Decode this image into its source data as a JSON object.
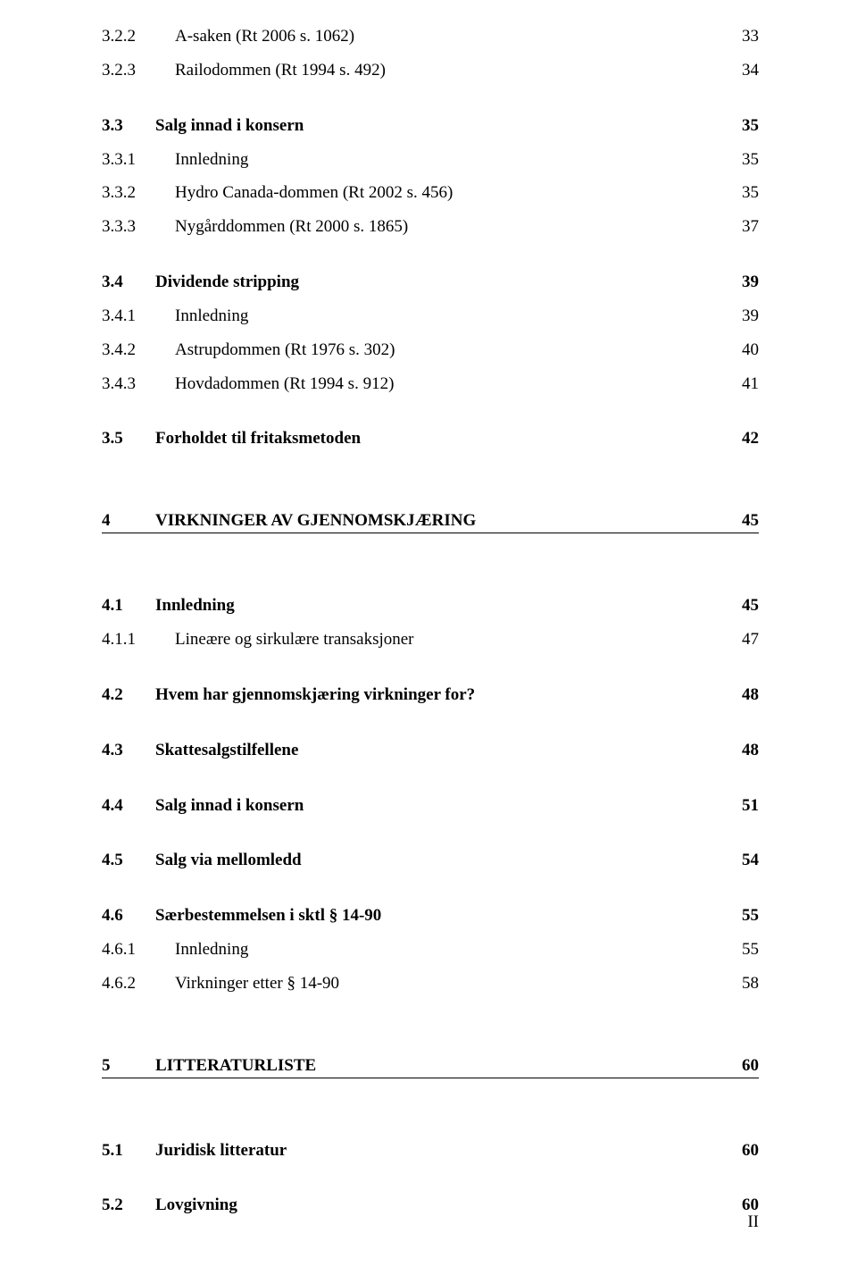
{
  "entries": [
    {
      "num": "3.2.2",
      "title": "A-saken (Rt 2006 s. 1062)",
      "page": "33",
      "bold": false,
      "underline": false,
      "gap_after": 16
    },
    {
      "num": "3.2.3",
      "title": "Railodommen (Rt 1994 s. 492)",
      "page": "34",
      "bold": false,
      "underline": false,
      "gap_after": 40
    },
    {
      "num": "3.3",
      "title": "Salg innad i konsern",
      "page": "35",
      "bold": true,
      "underline": false,
      "gap_after": 16
    },
    {
      "num": "3.3.1",
      "title": "Innledning",
      "page": "35",
      "bold": false,
      "underline": false,
      "gap_after": 16
    },
    {
      "num": "3.3.2",
      "title": "Hydro Canada-dommen (Rt 2002 s. 456)",
      "page": "35",
      "bold": false,
      "underline": false,
      "gap_after": 16
    },
    {
      "num": "3.3.3",
      "title": "Nygårddommen (Rt 2000 s. 1865)",
      "page": "37",
      "bold": false,
      "underline": false,
      "gap_after": 40
    },
    {
      "num": "3.4",
      "title": "Dividende stripping",
      "page": "39",
      "bold": true,
      "underline": false,
      "gap_after": 16
    },
    {
      "num": "3.4.1",
      "title": "Innledning",
      "page": "39",
      "bold": false,
      "underline": false,
      "gap_after": 16
    },
    {
      "num": "3.4.2",
      "title": "Astrupdommen (Rt 1976 s. 302)",
      "page": "40",
      "bold": false,
      "underline": false,
      "gap_after": 16
    },
    {
      "num": "3.4.3",
      "title": "Hovdadommen (Rt 1994 s. 912)",
      "page": "41",
      "bold": false,
      "underline": false,
      "gap_after": 40
    },
    {
      "num": "3.5",
      "title": "Forholdet til fritaksmetoden",
      "page": "42",
      "bold": true,
      "underline": false,
      "gap_after": 70
    },
    {
      "num": "4",
      "title": "VIRKNINGER AV GJENNOMSKJÆRING",
      "page": "45",
      "bold": true,
      "underline": true,
      "gap_after": 70
    },
    {
      "num": "4.1",
      "title": "Innledning",
      "page": "45",
      "bold": true,
      "underline": false,
      "gap_after": 16
    },
    {
      "num": "4.1.1",
      "title": "Lineære og sirkulære transaksjoner",
      "page": "47",
      "bold": false,
      "underline": false,
      "gap_after": 40
    },
    {
      "num": "4.2",
      "title": "Hvem har gjennomskjæring virkninger for?",
      "page": "48",
      "bold": true,
      "underline": false,
      "gap_after": 40
    },
    {
      "num": "4.3",
      "title": "Skattesalgstilfellene",
      "page": "48",
      "bold": true,
      "underline": false,
      "gap_after": 40
    },
    {
      "num": "4.4",
      "title": "Salg innad i konsern",
      "page": "51",
      "bold": true,
      "underline": false,
      "gap_after": 40
    },
    {
      "num": "4.5",
      "title": "Salg via mellomledd",
      "page": "54",
      "bold": true,
      "underline": false,
      "gap_after": 40
    },
    {
      "num": "4.6",
      "title": "Særbestemmelsen i sktl § 14-90",
      "page": "55",
      "bold": true,
      "underline": false,
      "gap_after": 16
    },
    {
      "num": "4.6.1",
      "title": "Innledning",
      "page": "55",
      "bold": false,
      "underline": false,
      "gap_after": 16
    },
    {
      "num": "4.6.2",
      "title": "Virkninger etter § 14-90",
      "page": "58",
      "bold": false,
      "underline": false,
      "gap_after": 70
    },
    {
      "num": "5",
      "title": "LITTERATURLISTE",
      "page": "60",
      "bold": true,
      "underline": true,
      "gap_after": 70
    },
    {
      "num": "5.1",
      "title": "Juridisk litteratur",
      "page": "60",
      "bold": true,
      "underline": false,
      "gap_after": 40
    },
    {
      "num": "5.2",
      "title": "Lovgivning",
      "page": "60",
      "bold": true,
      "underline": false,
      "gap_after": 0
    }
  ],
  "roman_page": "II",
  "label_width_wide": "82px",
  "label_width_normal": "60px"
}
